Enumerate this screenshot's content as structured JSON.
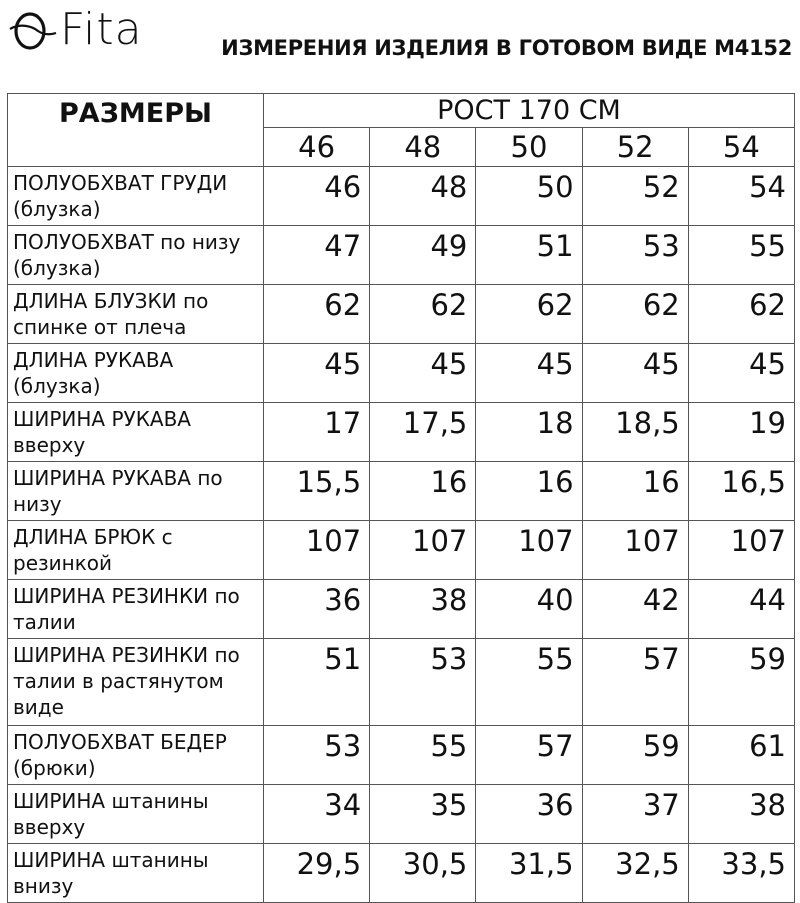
{
  "header": {
    "logo_text": "Fita",
    "title": "ИЗМЕРЕНИЯ ИЗДЕЛИЯ В ГОТОВОМ ВИДЕ М4152"
  },
  "table": {
    "sizes_header": "РАЗМЕРЫ",
    "height_header": "РОСТ 170 СМ",
    "sizes": [
      "46",
      "48",
      "50",
      "52",
      "54"
    ],
    "rows": [
      {
        "label": "ПОЛУОБХВАТ ГРУДИ (блузка)",
        "values": [
          "46",
          "48",
          "50",
          "52",
          "54"
        ]
      },
      {
        "label": "ПОЛУОБХВАТ по низу (блузка)",
        "values": [
          "47",
          "49",
          "51",
          "53",
          "55"
        ]
      },
      {
        "label": "ДЛИНА БЛУЗКИ по спинке от плеча",
        "values": [
          "62",
          "62",
          "62",
          "62",
          "62"
        ]
      },
      {
        "label": "ДЛИНА РУКАВА (блузка)",
        "values": [
          "45",
          "45",
          "45",
          "45",
          "45"
        ]
      },
      {
        "label": "ШИРИНА РУКАВА вверху",
        "values": [
          "17",
          "17,5",
          "18",
          "18,5",
          "19"
        ]
      },
      {
        "label": "ШИРИНА РУКАВА по низу",
        "values": [
          "15,5",
          "16",
          "16",
          "16",
          "16,5"
        ]
      },
      {
        "label": "ДЛИНА БРЮК с резинкой",
        "values": [
          "107",
          "107",
          "107",
          "107",
          "107"
        ]
      },
      {
        "label": "ШИРИНА РЕЗИНКИ по талии",
        "values": [
          "36",
          "38",
          "40",
          "42",
          "44"
        ]
      },
      {
        "label": "ШИРИНА РЕЗИНКИ по талии в растянутом виде",
        "values": [
          "51",
          "53",
          "55",
          "57",
          "59"
        ]
      },
      {
        "label": "ПОЛУОБХВАТ БЕДЕР (брюки)",
        "values": [
          "53",
          "55",
          "57",
          "59",
          "61"
        ]
      },
      {
        "label": "ШИРИНА штанины вверху",
        "values": [
          "34",
          "35",
          "36",
          "37",
          "38"
        ]
      },
      {
        "label": "ШИРИНА штанины внизу",
        "values": [
          "29,5",
          "30,5",
          "31,5",
          "32,5",
          "33,5"
        ]
      }
    ]
  }
}
